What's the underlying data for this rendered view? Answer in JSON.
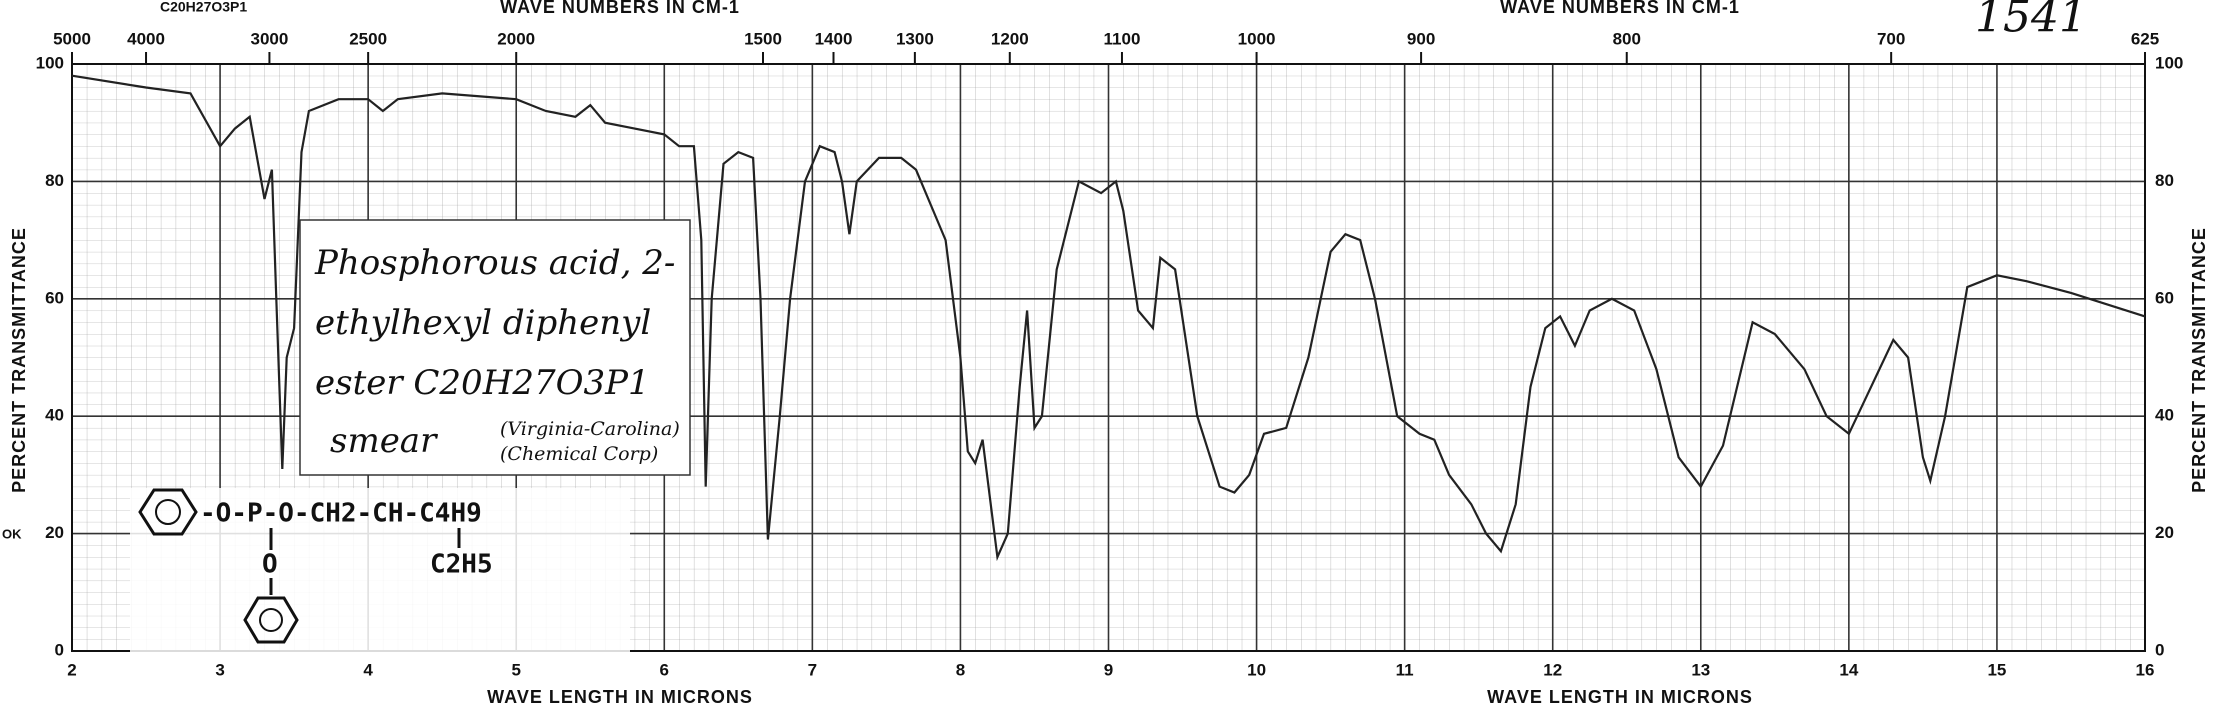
{
  "chart_data": {
    "type": "line",
    "title": "1541",
    "formula_label": "C20H27O3P1",
    "x_label": "WAVE LENGTH IN MICRONS",
    "x2_label": "WAVE NUMBERS IN CM-1",
    "y_label": "PERCENT TRANSMITTANCE",
    "side_mark": "OK",
    "annotation": [
      "Phosphorous acid, 2-",
      "ethylhexyl diphenyl",
      "ester C20H27O3P1",
      "smear",
      "(Virginia-Carolina)",
      "(Chemical Corp)"
    ],
    "structure": [
      "-O-P-O-CH2-CH-C4H9",
      "O",
      "C2H5"
    ],
    "x": [
      2.0,
      2.5,
      2.8,
      3.0,
      3.1,
      3.2,
      3.25,
      3.3,
      3.35,
      3.38,
      3.42,
      3.45,
      3.5,
      3.55,
      3.6,
      3.8,
      4.0,
      4.1,
      4.2,
      4.5,
      5.0,
      5.2,
      5.4,
      5.5,
      5.6,
      5.8,
      6.0,
      6.1,
      6.2,
      6.25,
      6.28,
      6.32,
      6.4,
      6.5,
      6.6,
      6.65,
      6.7,
      6.78,
      6.85,
      6.95,
      7.05,
      7.15,
      7.2,
      7.25,
      7.3,
      7.45,
      7.6,
      7.7,
      7.9,
      8.0,
      8.05,
      8.1,
      8.15,
      8.25,
      8.32,
      8.4,
      8.45,
      8.5,
      8.55,
      8.65,
      8.8,
      8.95,
      9.05,
      9.1,
      9.2,
      9.3,
      9.35,
      9.45,
      9.6,
      9.75,
      9.85,
      9.95,
      10.05,
      10.2,
      10.35,
      10.5,
      10.6,
      10.7,
      10.8,
      10.95,
      11.1,
      11.2,
      11.3,
      11.45,
      11.55,
      11.65,
      11.75,
      11.85,
      11.95,
      12.05,
      12.15,
      12.25,
      12.4,
      12.55,
      12.7,
      12.85,
      13.0,
      13.15,
      13.35,
      13.5,
      13.7,
      13.85,
      14.0,
      14.15,
      14.3,
      14.4,
      14.5,
      14.55,
      14.65,
      14.8,
      15.0,
      15.2,
      15.5,
      16.0
    ],
    "series": [
      {
        "name": "Transmittance",
        "color": "#222222",
        "values": [
          98,
          96,
          95,
          86,
          89,
          91,
          84,
          77,
          82,
          60,
          31,
          50,
          55,
          85,
          92,
          94,
          94,
          92,
          94,
          95,
          94,
          92,
          91,
          93,
          90,
          89,
          88,
          86,
          86,
          70,
          28,
          60,
          83,
          85,
          84,
          60,
          19,
          40,
          60,
          80,
          86,
          85,
          80,
          71,
          80,
          84,
          84,
          82,
          70,
          50,
          34,
          32,
          36,
          16,
          20,
          45,
          58,
          38,
          40,
          65,
          80,
          78,
          80,
          75,
          58,
          55,
          67,
          65,
          40,
          28,
          27,
          30,
          37,
          38,
          50,
          68,
          71,
          70,
          60,
          40,
          37,
          36,
          30,
          25,
          20,
          17,
          25,
          45,
          55,
          57,
          52,
          58,
          60,
          58,
          48,
          33,
          28,
          35,
          56,
          54,
          48,
          40,
          37,
          45,
          53,
          50,
          33,
          29,
          40,
          62,
          64,
          63,
          61,
          57
        ]
      }
    ],
    "xlim": [
      2,
      16
    ],
    "xticks": [
      2,
      3,
      4,
      5,
      6,
      7,
      8,
      9,
      10,
      11,
      12,
      13,
      14,
      15,
      16
    ],
    "x2ticks": [
      5000,
      4000,
      3000,
      2500,
      2000,
      1500,
      1400,
      1300,
      1200,
      1100,
      1000,
      900,
      800,
      700,
      625
    ],
    "ylim": [
      0,
      100
    ],
    "yticks": [
      0,
      20,
      40,
      60,
      80,
      100
    ],
    "grid": true
  }
}
